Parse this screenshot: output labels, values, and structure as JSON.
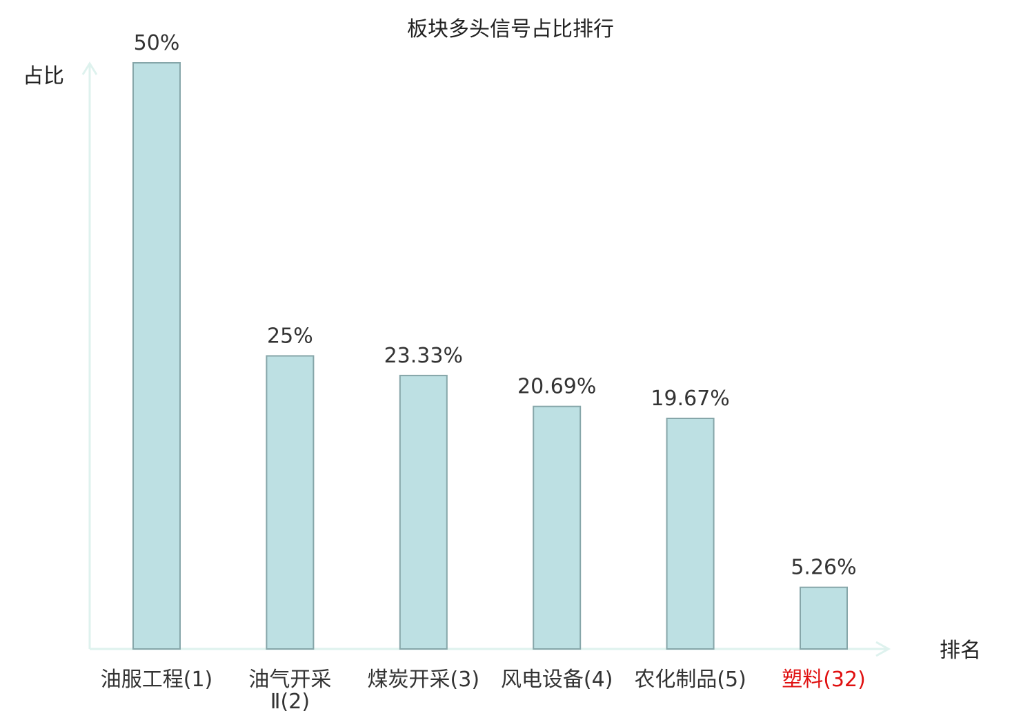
{
  "chart_data": {
    "type": "bar",
    "title": "板块多头信号占比排行",
    "ylabel": "占比",
    "xlabel": "排名",
    "ylim": [
      0,
      50
    ],
    "grid": false,
    "categories": [
      {
        "lines": [
          "油服工程(1)"
        ],
        "highlight": false
      },
      {
        "lines": [
          "油气开采",
          "Ⅱ(2)"
        ],
        "highlight": false
      },
      {
        "lines": [
          "煤炭开采(3)"
        ],
        "highlight": false
      },
      {
        "lines": [
          "风电设备(4)"
        ],
        "highlight": false
      },
      {
        "lines": [
          "农化制品(5)"
        ],
        "highlight": false
      },
      {
        "lines": [
          "塑料(32)"
        ],
        "highlight": true
      }
    ],
    "values": [
      50,
      25,
      23.33,
      20.69,
      19.67,
      5.26
    ],
    "value_labels": [
      "50%",
      "25%",
      "23.33%",
      "20.69%",
      "19.67%",
      "5.26%"
    ],
    "colors": {
      "bar_fill": "#bde0e3",
      "bar_stroke": "#86a6a9",
      "axis": "#def2ee",
      "highlight_label": "#e01010",
      "label": "#333333"
    }
  }
}
